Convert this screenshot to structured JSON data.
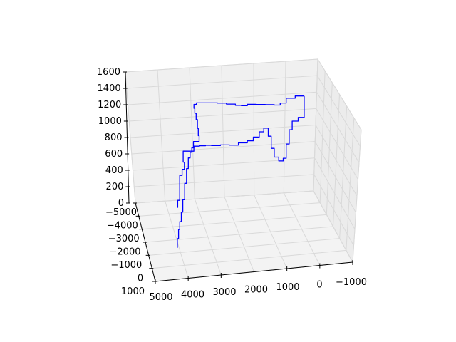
{
  "chart_data": {
    "type": "line",
    "projection": "3d",
    "title": "",
    "xlabel": "",
    "ylabel": "",
    "zlabel": "",
    "grid": true,
    "line_color": "#0000ff",
    "pane_color": "#f2f2f2",
    "x_ticks": [
      "5000",
      "4000",
      "3000",
      "2000",
      "1000",
      "0",
      "−1000"
    ],
    "y_ticks": [
      "1000",
      "0",
      "−1000",
      "−2000",
      "−3000",
      "−4000",
      "−5000"
    ],
    "z_ticks": [
      "0",
      "200",
      "400",
      "600",
      "800",
      "1000",
      "1200",
      "1400",
      "1600"
    ],
    "xlim": [
      -1000,
      5000
    ],
    "ylim": [
      -5000,
      1000
    ],
    "zlim": [
      0,
      1600
    ],
    "series": [
      {
        "values": [
          [
            4600,
            -4600,
            1220
          ],
          [
            4300,
            -4600,
            1200
          ],
          [
            4000,
            -4600,
            1150
          ],
          [
            3800,
            -4600,
            1130
          ],
          [
            3600,
            -4600,
            1140
          ],
          [
            3300,
            -4600,
            1150
          ],
          [
            3000,
            -4600,
            1160
          ],
          [
            2700,
            -4600,
            1150
          ],
          [
            2500,
            -4600,
            1160
          ],
          [
            2300,
            -4600,
            1180
          ],
          [
            2000,
            -4600,
            1200
          ],
          [
            1700,
            -4600,
            1210
          ],
          [
            1300,
            -4600,
            1220
          ],
          [
            1000,
            -4600,
            1210
          ],
          [
            900,
            -4500,
            1180
          ],
          [
            900,
            -4300,
            1150
          ],
          [
            900,
            -4000,
            1120
          ],
          [
            900,
            -3700,
            1060
          ],
          [
            900,
            -3500,
            1000
          ],
          [
            900,
            -3300,
            960
          ],
          [
            700,
            -3200,
            920
          ],
          [
            700,
            -3100,
            880
          ],
          [
            300,
            -2700,
            820
          ],
          [
            300,
            -2400,
            780
          ],
          [
            200,
            -2200,
            740
          ],
          [
            0,
            -1200,
            600
          ],
          [
            -100,
            -900,
            560
          ]
        ]
      },
      {
        "values": [
          [
            4600,
            -4600,
            1220
          ],
          [
            4600,
            -4600,
            960
          ],
          [
            4400,
            -4600,
            920
          ],
          [
            4200,
            -4600,
            820
          ],
          [
            4100,
            -4600,
            650
          ],
          [
            4000,
            -4600,
            480
          ],
          [
            3900,
            -4600,
            450
          ],
          [
            3750,
            -4600,
            500
          ],
          [
            3600,
            -4600,
            610
          ],
          [
            3500,
            -4600,
            760
          ],
          [
            3400,
            -4600,
            860
          ],
          [
            3250,
            -4600,
            820
          ],
          [
            3100,
            -4600,
            760
          ],
          [
            2900,
            -4600,
            720
          ],
          [
            2700,
            -4600,
            700
          ],
          [
            2400,
            -4600,
            680
          ],
          [
            2100,
            -4600,
            690
          ],
          [
            1800,
            -4600,
            690
          ],
          [
            1500,
            -4600,
            700
          ],
          [
            1300,
            -4600,
            700
          ],
          [
            1100,
            -4600,
            700
          ],
          [
            900,
            -4500,
            700
          ],
          [
            800,
            -4300,
            680
          ],
          [
            700,
            -4000,
            660
          ],
          [
            600,
            -3700,
            580
          ],
          [
            500,
            -3400,
            450
          ],
          [
            400,
            -3100,
            300
          ],
          [
            300,
            -2800,
            200
          ],
          [
            200,
            -2400,
            150
          ],
          [
            100,
            -2000,
            120
          ],
          [
            0,
            -1500,
            90
          ],
          [
            -100,
            -1000,
            60
          ]
        ]
      }
    ]
  }
}
